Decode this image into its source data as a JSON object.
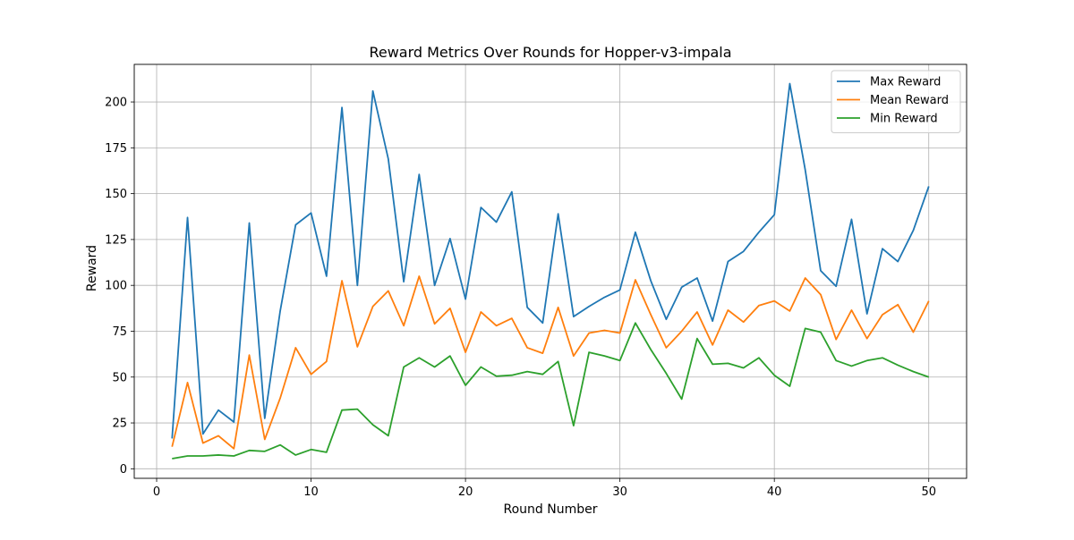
{
  "chart_data": {
    "type": "line",
    "title": "Reward Metrics Over Rounds for Hopper-v3-impala",
    "xlabel": "Round Number",
    "ylabel": "Reward",
    "xlim": [
      -1.45,
      52.45
    ],
    "ylim": [
      -5.2,
      220.5
    ],
    "xticks": [
      0,
      10,
      20,
      30,
      40,
      50
    ],
    "yticks": [
      0,
      25,
      50,
      75,
      100,
      125,
      150,
      175,
      200
    ],
    "grid": true,
    "legend_position": "top-right",
    "x": [
      1,
      2,
      3,
      4,
      5,
      6,
      7,
      8,
      9,
      10,
      11,
      12,
      13,
      14,
      15,
      16,
      17,
      18,
      19,
      20,
      21,
      22,
      23,
      24,
      25,
      26,
      27,
      28,
      29,
      30,
      31,
      32,
      33,
      34,
      35,
      36,
      37,
      38,
      39,
      40,
      41,
      42,
      43,
      44,
      45,
      46,
      47,
      48,
      49,
      50
    ],
    "series": [
      {
        "name": "Max Reward",
        "color": "#1f77b4",
        "values": [
          16.5,
          137,
          19,
          32,
          25.5,
          134,
          27.5,
          86,
          133,
          139.5,
          105,
          197,
          100,
          206,
          169,
          102,
          160.5,
          100,
          125.5,
          92.5,
          142.5,
          134.5,
          151,
          88,
          79.5,
          139,
          83,
          88.5,
          93.5,
          97.5,
          129,
          102.5,
          81.5,
          99,
          104,
          80.5,
          113,
          118.5,
          129,
          138.5,
          210,
          163,
          108,
          99.5,
          136,
          84.5,
          120,
          113,
          130,
          154
        ]
      },
      {
        "name": "Mean Reward",
        "color": "#ff7f0e",
        "values": [
          12,
          47,
          14,
          18,
          11,
          62,
          16,
          38.5,
          66,
          51.5,
          58.5,
          102.5,
          66.5,
          88.5,
          97,
          78,
          105,
          79,
          87.5,
          63.5,
          85.5,
          78,
          82,
          66,
          63,
          88,
          61.5,
          74,
          75.5,
          74,
          103,
          84,
          66,
          75,
          85.5,
          67.5,
          86.5,
          80,
          89,
          91.5,
          86,
          104,
          95,
          70.5,
          86.5,
          71,
          84,
          89.5,
          74.5,
          91.5
        ]
      },
      {
        "name": "Min Reward",
        "color": "#2ca02c",
        "values": [
          5.5,
          7,
          7,
          7.5,
          7,
          10,
          9.5,
          13,
          7.5,
          10.5,
          9,
          32,
          32.5,
          24,
          18,
          55.5,
          60.5,
          55.5,
          61.5,
          45.5,
          55.5,
          50.5,
          51,
          53,
          51.5,
          58.5,
          23.5,
          63.5,
          61.5,
          59,
          79.5,
          65,
          52,
          38,
          71,
          57,
          57.5,
          55,
          60.5,
          51,
          45,
          76.5,
          74.5,
          59,
          56,
          59,
          60.5,
          56.5,
          53,
          50
        ]
      }
    ]
  }
}
